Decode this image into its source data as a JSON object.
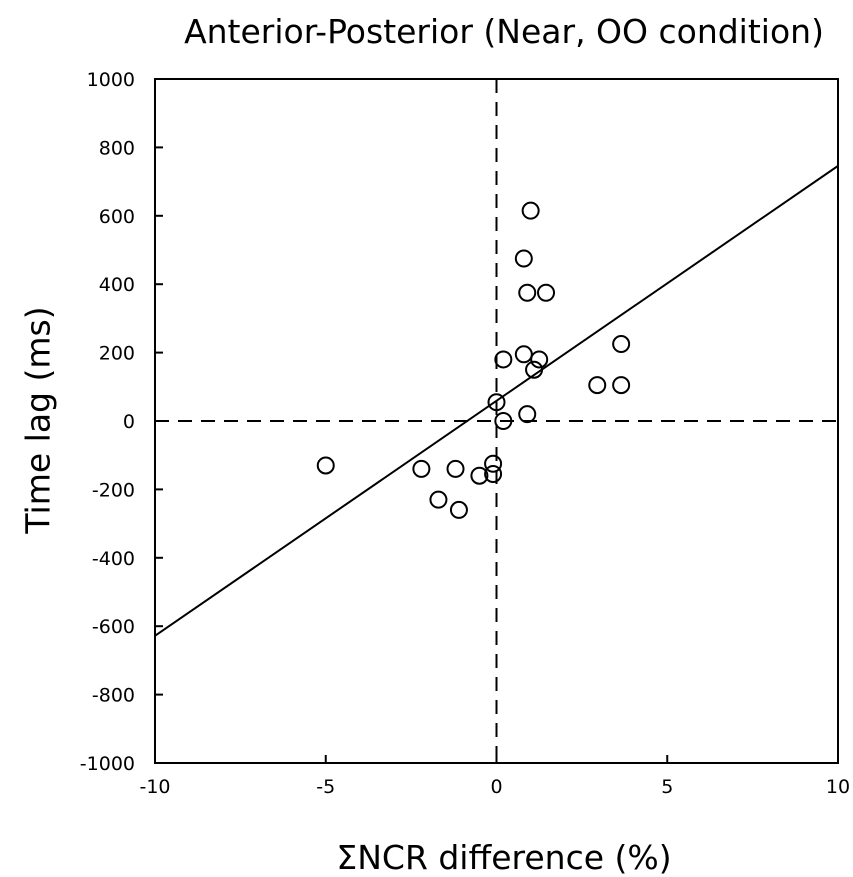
{
  "chart_data": {
    "type": "scatter",
    "title": "Anterior-Posterior (Near, OO condition)",
    "xlabel": "ΣNCR difference (%)",
    "ylabel": "Time lag (ms)",
    "xlim": [
      -10,
      10
    ],
    "ylim": [
      -1000,
      1000
    ],
    "x_ticks": [
      -10,
      -5,
      0,
      5,
      10
    ],
    "y_ticks": [
      1000,
      800,
      600,
      400,
      200,
      0,
      -200,
      -400,
      -600,
      -800,
      -1000
    ],
    "x_tick_labels": [
      "-10",
      "-5",
      "0",
      "5",
      "10"
    ],
    "y_tick_labels": [
      "1000",
      "800",
      "600",
      "400",
      "200",
      "0",
      "-200",
      "-400",
      "-600",
      "-800",
      "-1000"
    ],
    "grid": false,
    "reference_lines": {
      "x": 0,
      "y": 0,
      "style": "dashed"
    },
    "regression_line": {
      "x": [
        -10,
        10
      ],
      "y": [
        -628,
        746
      ]
    },
    "points": [
      {
        "x": -5.0,
        "y": -130
      },
      {
        "x": -2.2,
        "y": -140
      },
      {
        "x": -1.7,
        "y": -230
      },
      {
        "x": -1.2,
        "y": -140
      },
      {
        "x": -1.1,
        "y": -260
      },
      {
        "x": -0.5,
        "y": -160
      },
      {
        "x": -0.1,
        "y": -125
      },
      {
        "x": -0.1,
        "y": -155
      },
      {
        "x": 0.0,
        "y": 55
      },
      {
        "x": 0.2,
        "y": 0
      },
      {
        "x": 0.2,
        "y": 180
      },
      {
        "x": 0.8,
        "y": 475
      },
      {
        "x": 0.8,
        "y": 195
      },
      {
        "x": 0.9,
        "y": 375
      },
      {
        "x": 0.9,
        "y": 20
      },
      {
        "x": 1.0,
        "y": 615
      },
      {
        "x": 1.1,
        "y": 150
      },
      {
        "x": 1.25,
        "y": 180
      },
      {
        "x": 1.45,
        "y": 375
      },
      {
        "x": 2.95,
        "y": 105
      },
      {
        "x": 3.65,
        "y": 225
      },
      {
        "x": 3.65,
        "y": 105
      }
    ],
    "marker": {
      "shape": "open-circle",
      "color": "#000000"
    },
    "line_color": "#000000"
  }
}
